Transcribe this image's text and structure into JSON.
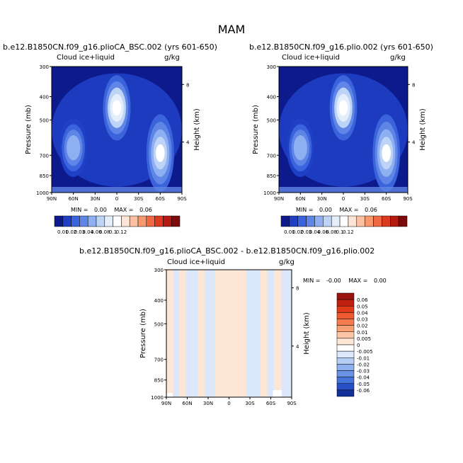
{
  "page_title": "MAM",
  "chart_data": [
    {
      "type": "heatmap",
      "title": "b.e12.B1850CN.f09_g16.plioCA_BSC.002 (yrs 601-650)",
      "left_subtitle": "Cloud ice+liquid",
      "right_subtitle": "g/kg",
      "ylabel": "Pressure (mb)",
      "y2label": "Height (km)",
      "xticks": [
        "90N",
        "60N",
        "30N",
        "0",
        "30S",
        "60S",
        "90S"
      ],
      "yticks": [
        "300",
        "400",
        "500",
        "700",
        "850",
        "1000"
      ],
      "y2ticks": [
        "8",
        "4"
      ],
      "ylim": [
        1000,
        300
      ],
      "stats": {
        "min_label": "MIN =",
        "min": "0.00",
        "max_label": "MAX =",
        "max": "0.06"
      },
      "colorbar": {
        "orientation": "horizontal",
        "labels": [
          "0.01",
          "0.02",
          "0.03",
          "0.04",
          "0.06",
          "0.08",
          "0.1",
          "0.12"
        ],
        "colors": [
          "#0d1a8c",
          "#1f3fc4",
          "#3a63dc",
          "#5f86e6",
          "#8fb0f0",
          "#bed4f7",
          "#e4eefb",
          "#ffffff",
          "#fde4d4",
          "#fbc1a1",
          "#f7986e",
          "#ef6a44",
          "#dc3b22",
          "#b31a10",
          "#7d0b0b"
        ]
      },
      "features": [
        {
          "lat": 0,
          "p_top": 330,
          "p_bot": 600,
          "value": 0.055,
          "desc": "tropical maximum"
        },
        {
          "lat": -60,
          "p_top": 480,
          "p_bot": 980,
          "value": 0.05,
          "desc": "southern storm track"
        },
        {
          "lat": 60,
          "p_top": 500,
          "p_bot": 850,
          "value": 0.035,
          "desc": "northern storm track"
        }
      ]
    },
    {
      "type": "heatmap",
      "title": "b.e12.B1850CN.f09_g16.plio.002 (yrs 601-650)",
      "left_subtitle": "Cloud ice+liquid",
      "right_subtitle": "g/kg",
      "ylabel": "Pressure (mb)",
      "y2label": "Height (km)",
      "xticks": [
        "90N",
        "60N",
        "30N",
        "0",
        "30S",
        "60S",
        "90S"
      ],
      "yticks": [
        "300",
        "400",
        "500",
        "700",
        "850",
        "1000"
      ],
      "y2ticks": [
        "8",
        "4"
      ],
      "ylim": [
        1000,
        300
      ],
      "stats": {
        "min_label": "MIN =",
        "min": "0.00",
        "max_label": "MAX =",
        "max": "0.06"
      },
      "colorbar": {
        "orientation": "horizontal",
        "labels": [
          "0.01",
          "0.02",
          "0.03",
          "0.04",
          "0.06",
          "0.08",
          "0.1",
          "0.12"
        ],
        "colors": [
          "#0d1a8c",
          "#1f3fc4",
          "#3a63dc",
          "#5f86e6",
          "#8fb0f0",
          "#bed4f7",
          "#e4eefb",
          "#ffffff",
          "#fde4d4",
          "#fbc1a1",
          "#f7986e",
          "#ef6a44",
          "#dc3b22",
          "#b31a10",
          "#7d0b0b"
        ]
      },
      "features": [
        {
          "lat": 0,
          "p_top": 330,
          "p_bot": 600,
          "value": 0.055,
          "desc": "tropical maximum"
        },
        {
          "lat": -60,
          "p_top": 480,
          "p_bot": 980,
          "value": 0.05,
          "desc": "southern storm track"
        },
        {
          "lat": 60,
          "p_top": 500,
          "p_bot": 850,
          "value": 0.035,
          "desc": "northern storm track"
        }
      ]
    },
    {
      "type": "heatmap",
      "title": "b.e12.B1850CN.f09_g16.plioCA_BSC.002 - b.e12.B1850CN.f09_g16.plio.002",
      "left_subtitle": "Cloud ice+liquid",
      "right_subtitle": "g/kg",
      "ylabel": "Pressure (mb)",
      "y2label": "Height (km)",
      "xticks": [
        "90N",
        "60N",
        "30N",
        "0",
        "30S",
        "60S",
        "90S"
      ],
      "yticks": [
        "300",
        "400",
        "500",
        "700",
        "850",
        "1000"
      ],
      "y2ticks": [
        "8",
        "4"
      ],
      "ylim": [
        1000,
        300
      ],
      "stats": {
        "min_label": "MIN =",
        "min": "-0.00",
        "max_label": "MAX =",
        "max": "0.00"
      },
      "colorbar": {
        "orientation": "vertical",
        "labels": [
          "0.06",
          "0.05",
          "0.04",
          "0.03",
          "0.02",
          "0.01",
          "0.005",
          "0",
          "-0.005",
          "-0.01",
          "-0.02",
          "-0.03",
          "-0.04",
          "-0.05",
          "-0.06"
        ],
        "colors": [
          "#99130f",
          "#c0200f",
          "#de3a1a",
          "#ef5a30",
          "#f57c4e",
          "#f9a075",
          "#fcc5a6",
          "#fde6d6",
          "#ffffff",
          "#dbe8fb",
          "#b6cdf4",
          "#8fb1ee",
          "#6a93e6",
          "#4473da",
          "#2750c7",
          "#13309a"
        ]
      },
      "bands": [
        {
          "lat_from": 90,
          "lat_to": 80,
          "sign": "positive"
        },
        {
          "lat_from": 72,
          "lat_to": 62,
          "sign": "positive"
        },
        {
          "lat_from": 45,
          "lat_to": 35,
          "sign": "positive"
        },
        {
          "lat_from": 20,
          "lat_to": -25,
          "sign": "positive"
        },
        {
          "lat_from": -45,
          "lat_to": -55,
          "sign": "positive"
        },
        {
          "lat_from": -65,
          "lat_to": -75,
          "sign": "positive"
        }
      ]
    }
  ]
}
